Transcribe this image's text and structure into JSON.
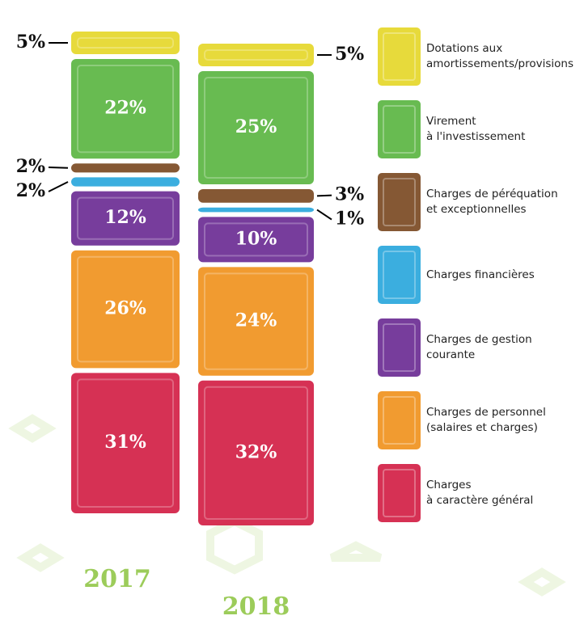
{
  "chart_data": {
    "type": "bar",
    "stacked": true,
    "categories": [
      "2017",
      "2018"
    ],
    "series": [
      {
        "name": "Charges\nà caractère général",
        "color": "#d21f45",
        "values": [
          31,
          32
        ],
        "value_labels": [
          "31%",
          "32%"
        ]
      },
      {
        "name": "Charges de personnel\n(salaires et charges)",
        "color": "#f0921e",
        "values": [
          26,
          24
        ],
        "value_labels": [
          "26%",
          "24%"
        ]
      },
      {
        "name": "Charges de gestion\ncourante",
        "color": "#6b2d94",
        "values": [
          12,
          10
        ],
        "value_labels": [
          "12%",
          "10%"
        ]
      },
      {
        "name": "Charges financières",
        "color": "#2aa7dc",
        "values": [
          2,
          1
        ],
        "value_labels": [
          "2%",
          "1%"
        ]
      },
      {
        "name": "Charges de péréquation\net exceptionnelles",
        "color": "#7b4a23",
        "values": [
          2,
          3
        ],
        "value_labels": [
          "2%",
          "3%"
        ]
      },
      {
        "name": "Virement\nà l'investissement",
        "color": "#5bb542",
        "values": [
          22,
          25
        ],
        "value_labels": [
          "22%",
          "25%"
        ]
      },
      {
        "name": "Dotations aux\namortissements/provisions",
        "color": "#e5d72a",
        "values": [
          5,
          5
        ],
        "value_labels": [
          "5%",
          "5%"
        ]
      }
    ]
  }
}
